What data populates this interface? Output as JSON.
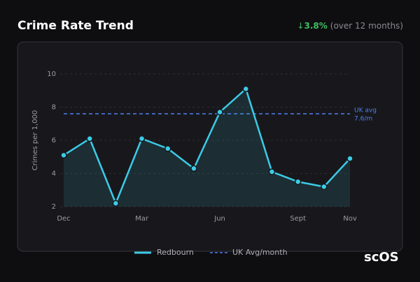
{
  "chart_data": {
    "type": "line",
    "title": "Crime Rate Trend",
    "change_arrow": "↓",
    "change": "3.8%",
    "change_note": "(over 12 months)",
    "y_label": "Crimes per 1,000",
    "categories": [
      "Dec",
      null,
      null,
      "Mar",
      null,
      null,
      "Jun",
      null,
      null,
      "Sept",
      null,
      "Nov"
    ],
    "series": [
      {
        "name": "Redbourn",
        "color": "#3ccbe6",
        "values": [
          5.1,
          6.1,
          2.2,
          6.1,
          5.5,
          4.3,
          7.7,
          9.1,
          4.1,
          3.5,
          3.2,
          4.9
        ]
      }
    ],
    "reference": {
      "name": "UK Avg/month",
      "value": 7.6,
      "label": "UK avg",
      "value_label": "7.6/m",
      "color": "#4f7ff0"
    },
    "ylim": [
      2,
      10
    ],
    "yticks": [
      2,
      4,
      6,
      8,
      10
    ],
    "grid": true,
    "watermark": "scOS"
  }
}
